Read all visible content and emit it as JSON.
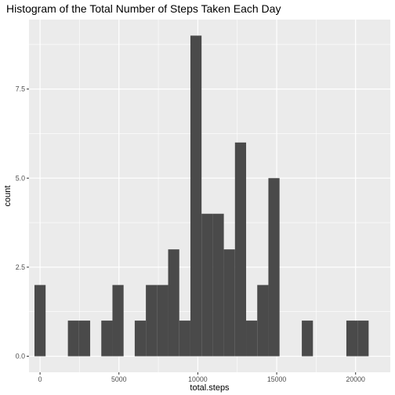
{
  "chart_data": {
    "type": "bar",
    "subtype": "histogram",
    "title": "Histogram of the Total Number of Steps Taken Each Day",
    "xlabel": "total.steps",
    "ylabel": "count",
    "x_ticks": [
      "0",
      "5000",
      "10000",
      "15000",
      "20000"
    ],
    "x_tick_values": [
      0,
      5000,
      10000,
      15000,
      20000
    ],
    "y_ticks": [
      "0.0",
      "2.5",
      "5.0",
      "7.5"
    ],
    "y_tick_values": [
      0,
      2.5,
      5.0,
      7.5
    ],
    "xlim": [
      -700,
      22200
    ],
    "ylim": [
      -0.45,
      9.45
    ],
    "bin_width": 706,
    "bins": [
      {
        "x_start": -353,
        "x_end": 353,
        "count": 2
      },
      {
        "x_start": 1765,
        "x_end": 2471,
        "count": 1
      },
      {
        "x_start": 2471,
        "x_end": 3177,
        "count": 1
      },
      {
        "x_start": 3883,
        "x_end": 4589,
        "count": 1
      },
      {
        "x_start": 4589,
        "x_end": 5295,
        "count": 2
      },
      {
        "x_start": 6001,
        "x_end": 6707,
        "count": 1
      },
      {
        "x_start": 6707,
        "x_end": 7413,
        "count": 2
      },
      {
        "x_start": 7413,
        "x_end": 8119,
        "count": 2
      },
      {
        "x_start": 8119,
        "x_end": 8825,
        "count": 3
      },
      {
        "x_start": 8825,
        "x_end": 9531,
        "count": 1
      },
      {
        "x_start": 9531,
        "x_end": 10237,
        "count": 9
      },
      {
        "x_start": 10237,
        "x_end": 10943,
        "count": 4
      },
      {
        "x_start": 10943,
        "x_end": 11649,
        "count": 4
      },
      {
        "x_start": 11649,
        "x_end": 12355,
        "count": 3
      },
      {
        "x_start": 12355,
        "x_end": 13061,
        "count": 6
      },
      {
        "x_start": 13061,
        "x_end": 13767,
        "count": 1
      },
      {
        "x_start": 13767,
        "x_end": 14473,
        "count": 2
      },
      {
        "x_start": 14473,
        "x_end": 15179,
        "count": 5
      },
      {
        "x_start": 16591,
        "x_end": 17297,
        "count": 1
      },
      {
        "x_start": 19415,
        "x_end": 20121,
        "count": 1
      },
      {
        "x_start": 20121,
        "x_end": 20827,
        "count": 1
      }
    ],
    "grid": true,
    "bar_color": "#4a4a4a",
    "panel_color": "#ebebeb",
    "grid_color": "#ffffff"
  }
}
